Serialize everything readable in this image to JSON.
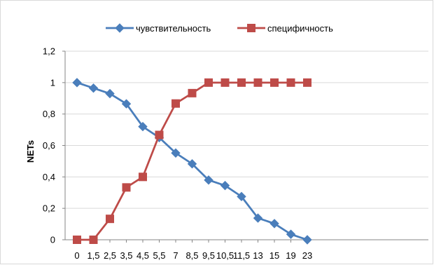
{
  "chart_data": {
    "type": "line",
    "title": "",
    "xlabel": "",
    "ylabel": "NETs",
    "categories": [
      "0",
      "1,5",
      "2,5",
      "3,5",
      "4,5",
      "5,5",
      "7",
      "8,5",
      "9,5",
      "10,5",
      "11,5",
      "13",
      "15",
      "19",
      "23"
    ],
    "yticks": [
      "0",
      "0,2",
      "0,4",
      "0,6",
      "0,8",
      "1",
      "1,2"
    ],
    "ylim": [
      0,
      1.2
    ],
    "grid": "horizontal",
    "legend_position": "top",
    "series": [
      {
        "name": "чувствительность",
        "color": "#4A7EBB",
        "marker": "diamond",
        "values": [
          1.0,
          0.965,
          0.93,
          0.865,
          0.72,
          0.65,
          0.552,
          0.483,
          0.38,
          0.345,
          0.275,
          0.138,
          0.103,
          0.035,
          0.0
        ]
      },
      {
        "name": "специфичность",
        "color": "#BE4B48",
        "marker": "square",
        "values": [
          0.0,
          0.0,
          0.133,
          0.333,
          0.4,
          0.667,
          0.867,
          0.933,
          1.0,
          1.0,
          1.0,
          1.0,
          1.0,
          1.0,
          1.0
        ]
      }
    ]
  }
}
